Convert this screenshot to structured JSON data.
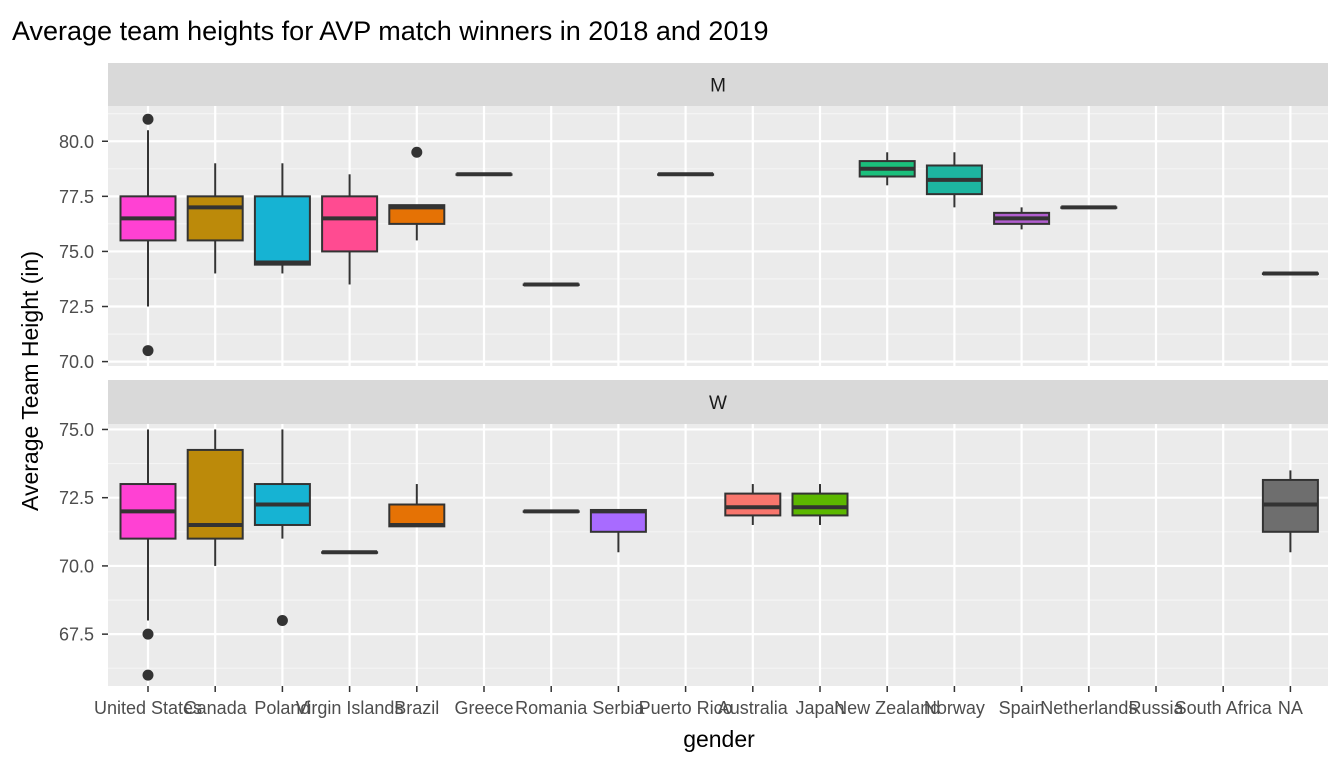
{
  "chart_data": {
    "type": "boxplot",
    "title": "Average team heights for AVP match winners in 2018 and 2019",
    "xlabel": "gender",
    "ylabel": "Average Team Height (in)",
    "categories": [
      "United States",
      "Canada",
      "Poland",
      "Virgin Islands",
      "Brazil",
      "Greece",
      "Romania",
      "Serbia",
      "Puerto Rico",
      "Australia",
      "Japan",
      "New Zealand",
      "Norway",
      "Spain",
      "Netherlands",
      "Russia",
      "South Africa",
      "NA"
    ],
    "colors": {
      "United States": "#FF41D3",
      "Canada": "#BC8A0A",
      "Poland": "#16B3D3",
      "Virgin Islands": "#FF4B91",
      "Brazil": "#E57205",
      "Greece": "#A3A500",
      "Romania": "#6BB100",
      "Serbia": "#A86BFF",
      "Puerto Rico": "#00BAE0",
      "Australia": "#F8766D",
      "Japan": "#5CB800",
      "New Zealand": "#1BBF7C",
      "Norway": "#1DB5A0",
      "Spain": "#B15ECF",
      "Netherlands": "#00A9FF",
      "Russia": "#E76BF3",
      "South Africa": "#FF62BC",
      "NA": "#6E6E6E"
    },
    "panels": [
      {
        "label": "M",
        "ylim": [
          69.8,
          81.6
        ],
        "yticks": [
          "70.0",
          "72.5",
          "75.0",
          "77.5",
          "80.0"
        ],
        "boxes": [
          {
            "category": "United States",
            "lower": 72.5,
            "q1": 75.5,
            "median": 76.5,
            "q3": 77.5,
            "upper": 80.5,
            "outliers": [
              81.0,
              70.5
            ]
          },
          {
            "category": "Canada",
            "lower": 74.0,
            "q1": 75.5,
            "median": 77.0,
            "q3": 77.5,
            "upper": 79.0,
            "outliers": []
          },
          {
            "category": "Poland",
            "lower": 74.0,
            "q1": 74.4,
            "median": 74.5,
            "q3": 77.5,
            "upper": 79.0,
            "outliers": []
          },
          {
            "category": "Virgin Islands",
            "lower": 73.5,
            "q1": 75.0,
            "median": 76.5,
            "q3": 77.5,
            "upper": 78.5,
            "outliers": []
          },
          {
            "category": "Brazil",
            "lower": 75.5,
            "q1": 76.25,
            "median": 77.0,
            "q3": 77.1,
            "upper": 77.1,
            "outliers": [
              79.5
            ]
          },
          {
            "category": "Greece",
            "lower": 78.5,
            "q1": 78.5,
            "median": 78.5,
            "q3": 78.5,
            "upper": 78.5,
            "outliers": []
          },
          {
            "category": "Romania",
            "lower": 73.5,
            "q1": 73.5,
            "median": 73.5,
            "q3": 73.5,
            "upper": 73.5,
            "outliers": []
          },
          {
            "category": "Puerto Rico",
            "lower": 78.5,
            "q1": 78.5,
            "median": 78.5,
            "q3": 78.5,
            "upper": 78.5,
            "outliers": []
          },
          {
            "category": "New Zealand",
            "lower": 78.0,
            "q1": 78.4,
            "median": 78.75,
            "q3": 79.1,
            "upper": 79.5,
            "outliers": []
          },
          {
            "category": "Norway",
            "lower": 77.0,
            "q1": 77.6,
            "median": 78.25,
            "q3": 78.9,
            "upper": 79.5,
            "outliers": []
          },
          {
            "category": "Spain",
            "lower": 76.0,
            "q1": 76.25,
            "median": 76.5,
            "q3": 76.75,
            "upper": 77.0,
            "outliers": []
          },
          {
            "category": "Netherlands",
            "lower": 77.0,
            "q1": 77.0,
            "median": 77.0,
            "q3": 77.0,
            "upper": 77.0,
            "outliers": []
          },
          {
            "category": "NA",
            "lower": 74.0,
            "q1": 74.0,
            "median": 74.0,
            "q3": 74.0,
            "upper": 74.0,
            "outliers": []
          }
        ]
      },
      {
        "label": "W",
        "ylim": [
          65.6,
          75.2
        ],
        "yticks": [
          "67.5",
          "70.0",
          "72.5",
          "75.0"
        ],
        "boxes": [
          {
            "category": "United States",
            "lower": 68.0,
            "q1": 71.0,
            "median": 72.0,
            "q3": 73.0,
            "upper": 75.0,
            "outliers": [
              67.5,
              66.0
            ]
          },
          {
            "category": "Canada",
            "lower": 70.0,
            "q1": 71.0,
            "median": 71.5,
            "q3": 74.25,
            "upper": 75.0,
            "outliers": []
          },
          {
            "category": "Poland",
            "lower": 71.0,
            "q1": 71.5,
            "median": 72.25,
            "q3": 73.0,
            "upper": 75.0,
            "outliers": [
              68.0
            ]
          },
          {
            "category": "Virgin Islands",
            "lower": 70.5,
            "q1": 70.5,
            "median": 70.5,
            "q3": 70.5,
            "upper": 70.5,
            "outliers": []
          },
          {
            "category": "Brazil",
            "lower": 71.5,
            "q1": 71.45,
            "median": 71.5,
            "q3": 72.25,
            "upper": 73.0,
            "outliers": []
          },
          {
            "category": "Romania",
            "lower": 72.0,
            "q1": 72.0,
            "median": 72.0,
            "q3": 72.0,
            "upper": 72.0,
            "outliers": []
          },
          {
            "category": "Serbia",
            "lower": 70.5,
            "q1": 71.25,
            "median": 72.0,
            "q3": 72.05,
            "upper": 72.05,
            "outliers": []
          },
          {
            "category": "Australia",
            "lower": 71.5,
            "q1": 71.85,
            "median": 72.15,
            "q3": 72.65,
            "upper": 73.0,
            "outliers": []
          },
          {
            "category": "Japan",
            "lower": 71.5,
            "q1": 71.85,
            "median": 72.15,
            "q3": 72.65,
            "upper": 73.0,
            "outliers": []
          },
          {
            "category": "NA",
            "lower": 70.5,
            "q1": 71.25,
            "median": 72.25,
            "q3": 73.15,
            "upper": 73.5,
            "outliers": []
          }
        ]
      }
    ],
    "grid": true,
    "legend": "none"
  }
}
